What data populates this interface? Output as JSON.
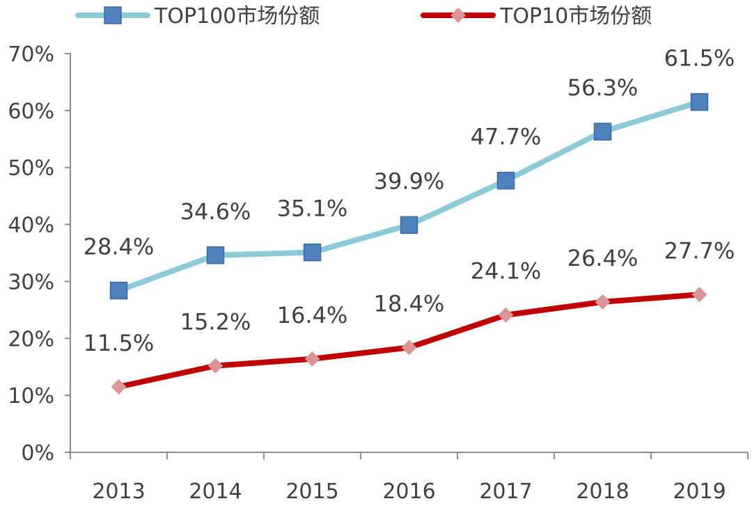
{
  "chart_data": {
    "type": "line",
    "title": "",
    "xlabel": "",
    "ylabel": "",
    "categories": [
      "2013",
      "2014",
      "2015",
      "2016",
      "2017",
      "2018",
      "2019"
    ],
    "ylim": [
      0,
      70
    ],
    "y_ticks": [
      "0%",
      "10%",
      "20%",
      "30%",
      "40%",
      "50%",
      "60%",
      "70%"
    ],
    "grid": false,
    "legend_position": "top",
    "series": [
      {
        "name": "TOP100市场份额",
        "values": [
          28.4,
          34.6,
          35.1,
          39.9,
          47.7,
          56.3,
          61.5
        ],
        "labels": [
          "28.4%",
          "34.6%",
          "35.1%",
          "39.9%",
          "47.7%",
          "56.3%",
          "61.5%"
        ],
        "line_color": "#8dcad8",
        "marker": "square",
        "marker_color": "#4f81bd"
      },
      {
        "name": "TOP10市场份额",
        "values": [
          11.5,
          15.2,
          16.4,
          18.4,
          24.1,
          26.4,
          27.7
        ],
        "labels": [
          "11.5%",
          "15.2%",
          "16.4%",
          "18.4%",
          "24.1%",
          "26.4%",
          "27.7%"
        ],
        "line_color": "#c00000",
        "marker": "diamond",
        "marker_color": "#d99694"
      }
    ]
  }
}
